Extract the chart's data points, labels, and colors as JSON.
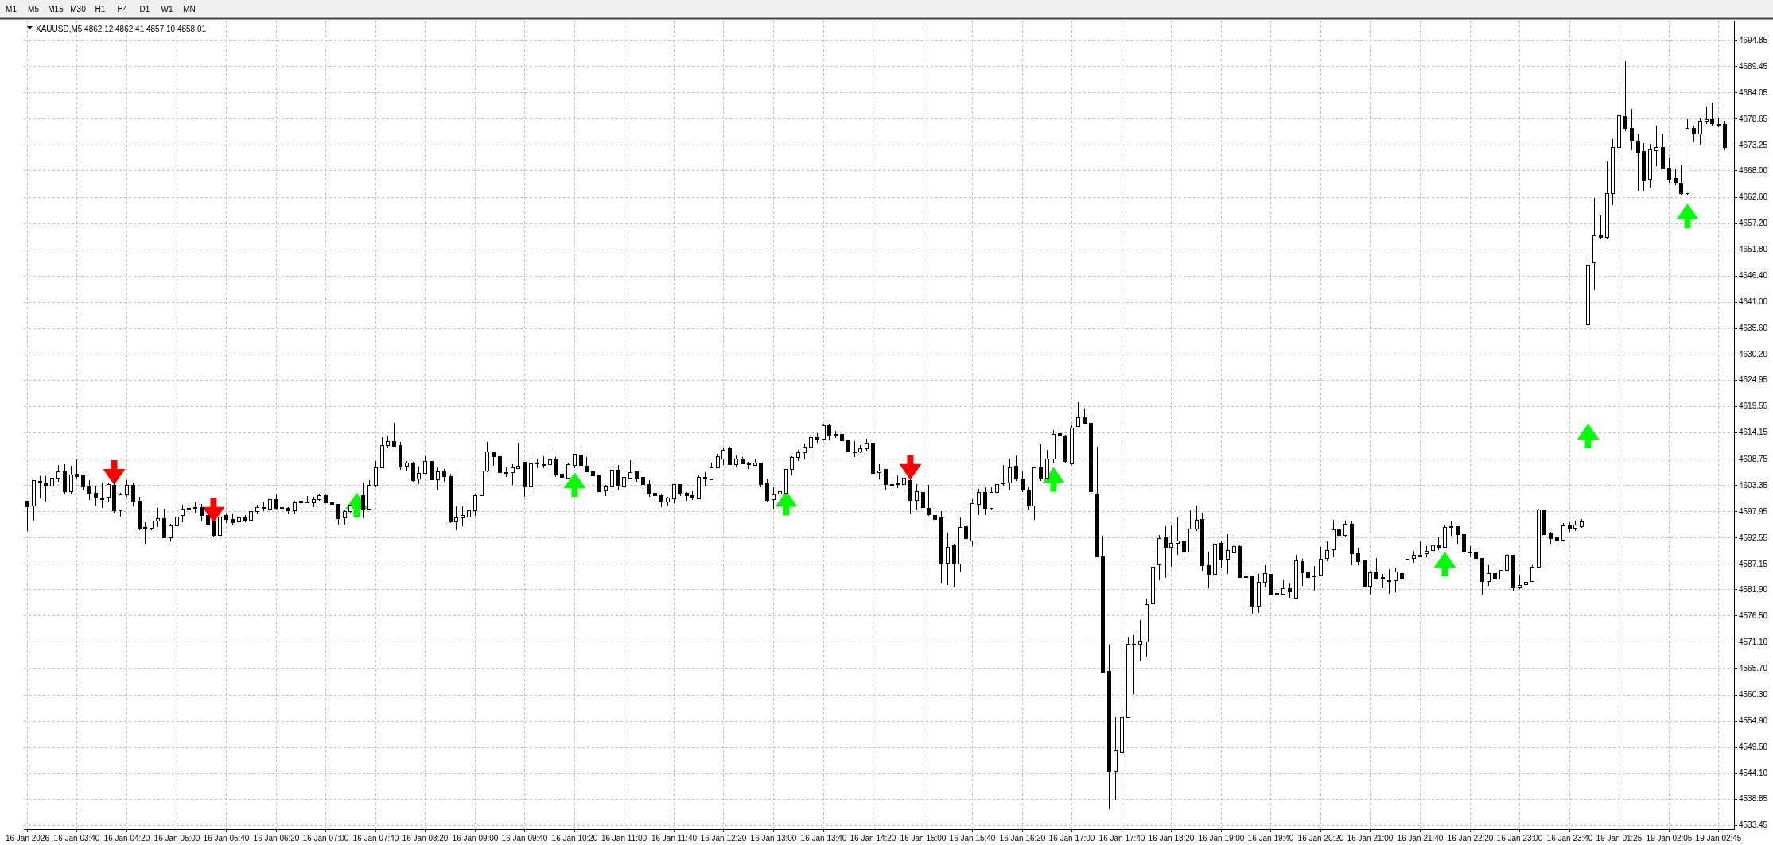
{
  "chart_data": {
    "type": "candlestick",
    "title": "XAUUSD,M5 4862.12 4862.41 4857.10 4858.01",
    "annotations": [
      "M1",
      "M5",
      "M15",
      "M30",
      "H1",
      "H4",
      "D1",
      "W1",
      "MN"
    ],
    "categories": [
      "16 Jan 2026",
      null,
      null,
      null,
      null,
      null,
      null,
      null,
      "16 Jan 03:40",
      null,
      null,
      null,
      null,
      null,
      null,
      null,
      "16 Jan 04:20",
      null,
      null,
      null,
      null,
      null,
      null,
      null,
      "16 Jan 05:00",
      null,
      null,
      null,
      null,
      null,
      null,
      null,
      "16 Jan 05:40",
      null,
      null,
      null,
      null,
      null,
      null,
      null,
      "16 Jan 06:20",
      null,
      null,
      null,
      null,
      null,
      null,
      null,
      "16 Jan 07:00",
      null,
      null,
      null,
      null,
      null,
      null,
      null,
      "16 Jan 07:40",
      null,
      null,
      null,
      null,
      null,
      null,
      null,
      "16 Jan 08:20",
      null,
      null,
      null,
      null,
      null,
      null,
      null,
      "16 Jan 09:00",
      null,
      null,
      null,
      null,
      null,
      null,
      null,
      "16 Jan 09:40",
      null,
      null,
      null,
      null,
      null,
      null,
      null,
      "16 Jan 10:20",
      null,
      null,
      null,
      null,
      null,
      null,
      null,
      "16 Jan 11:00",
      null,
      null,
      null,
      null,
      null,
      null,
      null,
      "16 Jan 11:40",
      null,
      null,
      null,
      null,
      null,
      null,
      null,
      "16 Jan 12:20",
      null,
      null,
      null,
      null,
      null,
      null,
      null,
      "16 Jan 13:00",
      null,
      null,
      null,
      null,
      null,
      null,
      null,
      "16 Jan 13:40",
      null,
      null,
      null,
      null,
      null,
      null,
      null,
      "16 Jan 14:20",
      null,
      null,
      null,
      null,
      null,
      null,
      null,
      "16 Jan 15:00",
      null,
      null,
      null,
      null,
      null,
      null,
      null,
      "16 Jan 15:40",
      null,
      null,
      null,
      null,
      null,
      null,
      null,
      "16 Jan 16:20",
      null,
      null,
      null,
      null,
      null,
      null,
      null,
      "16 Jan 17:00",
      null,
      null,
      null,
      null,
      null,
      null,
      null,
      "16 Jan 17:40",
      null,
      null,
      null,
      null,
      null,
      null,
      null,
      "16 Jan 18:20",
      null,
      null,
      null,
      null,
      null,
      null,
      null,
      "16 Jan 19:00",
      null,
      null,
      null,
      null,
      null,
      null,
      null,
      "16 Jan 19:40",
      null,
      null,
      null,
      null,
      null,
      null,
      null,
      "16 Jan 20:20",
      null,
      null,
      null,
      null,
      null,
      null,
      null,
      "16 Jan 21:00",
      null,
      null,
      null,
      null,
      null,
      null,
      null,
      "16 Jan 21:40",
      null,
      null,
      null,
      null,
      null,
      null,
      null,
      "16 Jan 22:20",
      null,
      null,
      null,
      null,
      null,
      null,
      null,
      "16 Jan 23:00",
      null,
      null,
      null,
      null,
      null,
      null,
      null,
      "16 Jan 23:40",
      null,
      null,
      null,
      null,
      null,
      null,
      null,
      "19 Jan 01:25",
      null,
      null,
      null,
      null,
      null,
      null,
      null,
      "19 Jan 02:05",
      null,
      null,
      null,
      null,
      null,
      null,
      null,
      "19 Jan 02:45",
      null
    ],
    "ohlc": [
      [
        4600.1,
        4600.1,
        4594.0,
        4599.0
      ],
      [
        4599.1,
        4604.4,
        4596.1,
        4604.4
      ],
      [
        4604.2,
        4605.1,
        4600.7,
        4603.9
      ],
      [
        4603.9,
        4605.2,
        4600.1,
        4603.2
      ],
      [
        4603.2,
        4604.8,
        4602.0,
        4604.8
      ],
      [
        4604.8,
        4607.4,
        4604.1,
        4606.1
      ],
      [
        4606.1,
        4607.6,
        4601.6,
        4602.0
      ],
      [
        4602.1,
        4607.3,
        4601.7,
        4605.5
      ],
      [
        4605.6,
        4608.6,
        4604.8,
        4605.2
      ],
      [
        4605.4,
        4605.5,
        4602.6,
        4603.1
      ],
      [
        4603.1,
        4604.4,
        4600.5,
        4601.7
      ],
      [
        4601.7,
        4603.1,
        4599.2,
        4600.7
      ],
      [
        4600.6,
        4603.8,
        4598.8,
        4600.5
      ],
      [
        4600.9,
        4603.8,
        4600.0,
        4603.5
      ],
      [
        4603.4,
        4604.1,
        4597.8,
        4598.1
      ],
      [
        4598.1,
        4601.7,
        4597.0,
        4601.4
      ],
      [
        4601.4,
        4604.4,
        4601.1,
        4603.4
      ],
      [
        4603.3,
        4603.8,
        4599.1,
        4600.1
      ],
      [
        4600.1,
        4600.9,
        4594.2,
        4594.6
      ],
      [
        4594.7,
        4595.6,
        4591.4,
        4594.6
      ],
      [
        4594.6,
        4596.0,
        4594.2,
        4596.0
      ],
      [
        4596.0,
        4598.6,
        4594.9,
        4596.5
      ],
      [
        4596.5,
        4598.4,
        4592.5,
        4592.5
      ],
      [
        4592.5,
        4595.3,
        4591.9,
        4595.0
      ],
      [
        4595.0,
        4598.2,
        4594.6,
        4596.9
      ],
      [
        4597.1,
        4599.3,
        4595.9,
        4598.4
      ],
      [
        4598.4,
        4599.3,
        4598.1,
        4598.6
      ],
      [
        4598.8,
        4599.8,
        4597.8,
        4598.7
      ],
      [
        4598.8,
        4599.4,
        4596.0,
        4597.1
      ],
      [
        4597.1,
        4597.4,
        4595.3,
        4595.3
      ],
      [
        4595.9,
        4596.0,
        4592.9,
        4593.0
      ],
      [
        4593.1,
        4597.7,
        4593.0,
        4596.9
      ],
      [
        4597.1,
        4597.5,
        4595.6,
        4596.3
      ],
      [
        4596.3,
        4597.5,
        4595.2,
        4595.7
      ],
      [
        4595.8,
        4597.0,
        4595.5,
        4596.7
      ],
      [
        4596.7,
        4597.2,
        4595.9,
        4596.1
      ],
      [
        4596.2,
        4598.7,
        4596.0,
        4597.9
      ],
      [
        4597.9,
        4599.2,
        4597.5,
        4598.8
      ],
      [
        4598.8,
        4599.7,
        4598.2,
        4598.7
      ],
      [
        4598.5,
        4600.5,
        4598.5,
        4600.5
      ],
      [
        4600.5,
        4601.4,
        4598.5,
        4598.6
      ],
      [
        4598.8,
        4599.2,
        4598.4,
        4598.7
      ],
      [
        4598.6,
        4598.8,
        4597.4,
        4598.1
      ],
      [
        4598.1,
        4600.1,
        4597.7,
        4599.8
      ],
      [
        4599.7,
        4600.9,
        4599.4,
        4600.1
      ],
      [
        4600.0,
        4601.0,
        4599.7,
        4599.9
      ],
      [
        4599.7,
        4600.9,
        4598.9,
        4600.4
      ],
      [
        4600.4,
        4601.6,
        4600.3,
        4601.3
      ],
      [
        4601.3,
        4601.4,
        4599.7,
        4599.8
      ],
      [
        4599.8,
        4600.5,
        4599.3,
        4599.4
      ],
      [
        4599.5,
        4599.5,
        4595.3,
        4596.5
      ],
      [
        4596.6,
        4598.2,
        4595.4,
        4597.9
      ],
      [
        4597.9,
        4599.2,
        4597.8,
        4599.2
      ],
      null,
      [
        4601.3,
        4603.8,
        4596.6,
        4598.4
      ],
      [
        4598.5,
        4604.4,
        4598.5,
        4603.4
      ],
      [
        4603.4,
        4608.3,
        4603.0,
        4607.0
      ],
      [
        4607.0,
        4613.1,
        4607.0,
        4611.5
      ],
      [
        4611.6,
        4613.5,
        4611.0,
        4612.4
      ],
      [
        4612.3,
        4616.1,
        4611.3,
        4611.3
      ],
      [
        4611.5,
        4612.2,
        4606.7,
        4607.1
      ],
      [
        4607.3,
        4608.3,
        4606.4,
        4608.0
      ],
      [
        4608.0,
        4608.1,
        4604.2,
        4604.4
      ],
      [
        4604.6,
        4607.1,
        4603.7,
        4605.8
      ],
      [
        4605.8,
        4609.2,
        4605.8,
        4608.3
      ],
      [
        4608.3,
        4608.3,
        4604.5,
        4604.5
      ],
      [
        4604.5,
        4607.0,
        4602.6,
        4606.1
      ],
      [
        4606.1,
        4606.7,
        4604.2,
        4605.1
      ],
      [
        4605.2,
        4605.6,
        4595.7,
        4595.9
      ],
      [
        4595.9,
        4598.9,
        4594.2,
        4596.6
      ],
      [
        4596.7,
        4598.9,
        4595.0,
        4597.1
      ],
      [
        4596.9,
        4599.3,
        4596.8,
        4598.1
      ],
      [
        4598.1,
        4601.6,
        4597.1,
        4601.3
      ],
      [
        4601.3,
        4606.3,
        4601.3,
        4606.3
      ],
      [
        4606.3,
        4612.2,
        4606.2,
        4610.2
      ],
      [
        4610.2,
        4610.2,
        4607.4,
        4609.2
      ],
      [
        4609.3,
        4609.3,
        4604.9,
        4605.9
      ],
      [
        4606.0,
        4607.0,
        4605.1,
        4605.9
      ],
      [
        4605.9,
        4607.6,
        4603.5,
        4607.0
      ],
      [
        4606.8,
        4612.1,
        4606.8,
        4607.3
      ],
      [
        4608.1,
        4608.1,
        4601.1,
        4603.1
      ],
      [
        4603.1,
        4609.6,
        4602.2,
        4607.7
      ],
      [
        4607.9,
        4608.8,
        4606.9,
        4607.8
      ],
      [
        4607.6,
        4609.2,
        4607.0,
        4607.5
      ],
      [
        4607.6,
        4610.6,
        4605.4,
        4608.6
      ],
      [
        4608.7,
        4609.0,
        4605.2,
        4605.5
      ],
      [
        4605.7,
        4608.6,
        4605.0,
        4605.0
      ],
      [
        4604.9,
        4607.7,
        4604.8,
        4607.6
      ],
      [
        4607.4,
        4609.7,
        4607.0,
        4609.7
      ],
      [
        4609.6,
        4610.6,
        4607.1,
        4607.4
      ],
      [
        4607.3,
        4609.0,
        4606.1,
        4606.2
      ],
      [
        4606.2,
        4606.6,
        4603.7,
        4605.4
      ],
      [
        4605.5,
        4605.5,
        4602.1,
        4602.1
      ],
      [
        4602.2,
        4603.4,
        4601.3,
        4603.1
      ],
      [
        4603.1,
        4607.3,
        4602.3,
        4606.5
      ],
      [
        4606.5,
        4607.4,
        4602.6,
        4603.2
      ],
      [
        4603.0,
        4605.0,
        4602.6,
        4605.0
      ],
      [
        4604.9,
        4608.4,
        4604.9,
        4606.0
      ],
      [
        4606.1,
        4606.3,
        4604.2,
        4604.9
      ],
      [
        4605.0,
        4605.0,
        4602.1,
        4603.6
      ],
      [
        4603.6,
        4604.4,
        4601.0,
        4601.6
      ],
      [
        4601.7,
        4602.1,
        4600.3,
        4601.3
      ],
      [
        4601.3,
        4601.6,
        4598.9,
        4599.9
      ],
      [
        4599.9,
        4600.9,
        4599.3,
        4600.7
      ],
      [
        4600.6,
        4603.6,
        4599.7,
        4603.6
      ],
      [
        4603.6,
        4603.6,
        4601.3,
        4601.6
      ],
      [
        4601.7,
        4601.9,
        4600.3,
        4601.3
      ],
      [
        4601.3,
        4602.1,
        4600.4,
        4600.7
      ],
      [
        4600.6,
        4605.4,
        4600.6,
        4605.0
      ],
      [
        4605.0,
        4605.9,
        4603.2,
        4604.6
      ],
      [
        4604.5,
        4608.0,
        4604.5,
        4607.0
      ],
      [
        4607.0,
        4609.7,
        4606.9,
        4609.2
      ],
      [
        4608.8,
        4611.0,
        4607.6,
        4610.6
      ],
      [
        4610.8,
        4611.2,
        4607.6,
        4607.6
      ],
      [
        4607.6,
        4609.4,
        4607.1,
        4608.7
      ],
      [
        4608.8,
        4609.0,
        4607.7,
        4607.8
      ],
      [
        4607.8,
        4608.1,
        4606.8,
        4607.7
      ],
      [
        4607.4,
        4608.8,
        4607.4,
        4608.0
      ],
      [
        4608.0,
        4608.0,
        4603.0,
        4603.6
      ],
      [
        4603.8,
        4604.6,
        4600.1,
        4600.3
      ],
      [
        4600.4,
        4602.8,
        4598.6,
        4601.4
      ],
      [
        4601.6,
        4602.2,
        4598.8,
        4602.0
      ],
      [
        4601.8,
        4606.7,
        4601.7,
        4606.7
      ],
      [
        4606.7,
        4609.3,
        4605.5,
        4609.1
      ],
      [
        4609.1,
        4610.5,
        4608.4,
        4610.0
      ],
      [
        4610.1,
        4611.9,
        4608.7,
        4611.2
      ],
      [
        4611.2,
        4613.4,
        4609.7,
        4613.1
      ],
      [
        4613.2,
        4614.0,
        4612.2,
        4612.8
      ],
      [
        4612.8,
        4615.8,
        4612.7,
        4615.6
      ],
      [
        4615.6,
        4616.0,
        4612.6,
        4613.7
      ],
      [
        4613.8,
        4614.5,
        4613.1,
        4613.7
      ],
      [
        4613.8,
        4614.5,
        4612.4,
        4612.5
      ],
      [
        4612.7,
        4612.7,
        4610.2,
        4610.2
      ],
      [
        4610.3,
        4612.3,
        4609.3,
        4610.2
      ],
      [
        4610.2,
        4611.5,
        4610.0,
        4610.9
      ],
      [
        4610.9,
        4612.9,
        4610.5,
        4612.0
      ],
      [
        4612.0,
        4612.0,
        4605.6,
        4605.8
      ],
      [
        4606.0,
        4607.6,
        4604.7,
        4606.3
      ],
      [
        4606.6,
        4606.7,
        4602.6,
        4603.5
      ],
      [
        4603.5,
        4604.1,
        4602.3,
        4603.4
      ],
      [
        4603.6,
        4605.3,
        4602.9,
        4603.7
      ],
      [
        4603.5,
        4605.3,
        4602.0,
        4604.9
      ],
      [
        4604.4,
        4604.7,
        4597.6,
        4600.3
      ],
      [
        4600.3,
        4603.5,
        4598.5,
        4602.0
      ],
      [
        4601.9,
        4605.5,
        4598.2,
        4598.8
      ],
      [
        4598.7,
        4603.3,
        4597.2,
        4597.3
      ],
      [
        4597.2,
        4598.7,
        4594.7,
        4596.4
      ],
      [
        4596.6,
        4598.0,
        4583.3,
        4587.2
      ],
      [
        4587.3,
        4593.5,
        4582.9,
        4590.6
      ],
      [
        4590.9,
        4591.2,
        4582.6,
        4587.2
      ],
      [
        4587.2,
        4596.6,
        4585.6,
        4594.7
      ],
      [
        4594.9,
        4598.9,
        4590.9,
        4592.4
      ],
      [
        4591.9,
        4600.5,
        4591.0,
        4599.6
      ],
      [
        4599.5,
        4602.5,
        4597.3,
        4601.9
      ],
      [
        4601.9,
        4602.8,
        4597.3,
        4598.6
      ],
      [
        4598.6,
        4602.8,
        4598.4,
        4601.9
      ],
      [
        4601.9,
        4603.5,
        4598.4,
        4603.5
      ],
      [
        4603.8,
        4607.5,
        4603.3,
        4603.7
      ],
      [
        4603.8,
        4608.7,
        4602.6,
        4607.0
      ],
      [
        4607.3,
        4609.4,
        4604.4,
        4604.6
      ],
      [
        4604.7,
        4606.1,
        4602.1,
        4602.3
      ],
      [
        4602.3,
        4602.9,
        4598.5,
        4599.1
      ],
      [
        4599.1,
        4607.2,
        4596.4,
        4606.9
      ],
      [
        4606.9,
        4611.7,
        4604.4,
        4604.9
      ],
      [
        4604.9,
        4610.6,
        4604.7,
        4608.8
      ],
      [
        4608.8,
        4614.6,
        4608.1,
        4613.8
      ],
      [
        4614.0,
        4614.9,
        4612.8,
        4613.5
      ],
      [
        4613.5,
        4613.6,
        4608.1,
        4608.3
      ],
      [
        4607.8,
        4615.7,
        4607.6,
        4615.2
      ],
      [
        4615.4,
        4620.3,
        4615.4,
        4617.3
      ],
      [
        4617.3,
        4619.1,
        4616.0,
        4616.1
      ],
      [
        4616.1,
        4617.8,
        4601.9,
        4602.1
      ],
      [
        4601.6,
        4611.2,
        4588.7,
        4588.7
      ],
      [
        4588.7,
        4592.9,
        4564.9,
        4565.0
      ],
      [
        4565.2,
        4570.5,
        4536.8,
        4544.6
      ],
      [
        4544.5,
        4555.6,
        4538.7,
        4548.7
      ],
      [
        4548.5,
        4557.0,
        4544.3,
        4555.6
      ],
      [
        4555.6,
        4572.2,
        4555.6,
        4570.7
      ],
      [
        4570.7,
        4572.5,
        4560.5,
        4570.6
      ],
      [
        4570.6,
        4575.6,
        4567.2,
        4571.3
      ],
      [
        4571.2,
        4580.0,
        4568.2,
        4578.9
      ],
      [
        4579.0,
        4590.4,
        4578.3,
        4586.6
      ],
      [
        4587.0,
        4593.0,
        4583.9,
        4592.4
      ],
      [
        4592.6,
        4594.8,
        4584.4,
        4590.6
      ],
      [
        4590.6,
        4595.0,
        4586.7,
        4591.4
      ],
      [
        4591.5,
        4596.6,
        4589.2,
        4592.0
      ],
      [
        4591.7,
        4595.4,
        4588.3,
        4589.6
      ],
      [
        4589.6,
        4598.1,
        4589.6,
        4594.4
      ],
      [
        4594.4,
        4599.1,
        4594.0,
        4596.2
      ],
      [
        4596.4,
        4597.6,
        4585.8,
        4586.9
      ],
      [
        4586.9,
        4589.6,
        4582.2,
        4585.0
      ],
      [
        4585.0,
        4593.6,
        4584.1,
        4591.3
      ],
      [
        4591.4,
        4591.8,
        4586.5,
        4588.2
      ],
      [
        4588.2,
        4593.3,
        4585.3,
        4589.9
      ],
      [
        4589.5,
        4593.1,
        4589.0,
        4590.8
      ],
      [
        4590.8,
        4590.9,
        4584.4,
        4584.4
      ],
      [
        4584.6,
        4586.8,
        4578.8,
        4584.5
      ],
      [
        4584.6,
        4584.6,
        4577.0,
        4578.6
      ],
      [
        4578.6,
        4585.0,
        4577.2,
        4583.5
      ],
      [
        4583.4,
        4586.8,
        4582.4,
        4585.3
      ],
      [
        4585.1,
        4585.1,
        4580.8,
        4580.8
      ],
      [
        4580.9,
        4582.4,
        4579.0,
        4581.2
      ],
      [
        4581.0,
        4583.7,
        4580.8,
        4582.1
      ],
      [
        4582.1,
        4583.1,
        4580.4,
        4581.5
      ],
      [
        4580.1,
        4589.0,
        4580.1,
        4587.8
      ],
      [
        4587.7,
        4588.1,
        4582.8,
        4585.4
      ],
      [
        4585.5,
        4586.3,
        4581.9,
        4584.4
      ],
      [
        4584.7,
        4586.7,
        4581.8,
        4584.6
      ],
      [
        4584.9,
        4590.6,
        4584.7,
        4588.2
      ],
      [
        4588.3,
        4591.7,
        4587.9,
        4589.9
      ],
      [
        4590.1,
        4596.1,
        4588.6,
        4594.2
      ],
      [
        4594.2,
        4594.8,
        4591.4,
        4593.0
      ],
      [
        4593.0,
        4596.0,
        4592.7,
        4595.4
      ],
      [
        4595.4,
        4595.8,
        4587.1,
        4589.3
      ],
      [
        4589.3,
        4590.4,
        4587.1,
        4587.6
      ],
      [
        4587.9,
        4588.0,
        4582.4,
        4582.5
      ],
      [
        4582.6,
        4585.6,
        4580.9,
        4585.4
      ],
      [
        4585.6,
        4588.4,
        4584.1,
        4584.3
      ],
      [
        4584.4,
        4585.0,
        4582.2,
        4584.0
      ],
      [
        4583.8,
        4586.0,
        4581.2,
        4583.7
      ],
      [
        4583.8,
        4586.3,
        4581.5,
        4585.5
      ],
      [
        4585.3,
        4585.4,
        4583.5,
        4584.1
      ],
      [
        4584.0,
        4588.2,
        4584.0,
        4588.2
      ],
      [
        4588.4,
        4589.8,
        4587.5,
        4588.9
      ],
      [
        4588.7,
        4591.7,
        4588.6,
        4589.0
      ],
      [
        4589.3,
        4590.8,
        4588.6,
        4589.8
      ],
      [
        4589.9,
        4592.2,
        4588.6,
        4590.9
      ],
      [
        4590.9,
        4592.5,
        4590.2,
        4590.5
      ],
      [
        4590.6,
        4595.1,
        4590.4,
        4594.7
      ],
      [
        4594.8,
        4595.9,
        4593.0,
        4594.7
      ],
      [
        4594.8,
        4594.8,
        4591.5,
        4593.3
      ],
      [
        4593.2,
        4593.2,
        4589.3,
        4589.6
      ],
      [
        4589.6,
        4590.8,
        4588.6,
        4589.5
      ],
      [
        4589.6,
        4589.8,
        4587.7,
        4588.4
      ],
      [
        4588.3,
        4588.3,
        4581.0,
        4583.6
      ],
      [
        4583.6,
        4586.8,
        4582.8,
        4585.2
      ],
      [
        4585.3,
        4587.1,
        4584.1,
        4584.1
      ],
      [
        4584.1,
        4585.8,
        4584.1,
        4585.8
      ],
      [
        4585.8,
        4589.1,
        4585.6,
        4588.9
      ],
      [
        4588.9,
        4588.9,
        4581.6,
        4582.2
      ],
      [
        4582.2,
        4584.9,
        4582.1,
        4582.8
      ],
      [
        4582.9,
        4583.9,
        4582.5,
        4583.4
      ],
      [
        4583.6,
        4586.9,
        4583.6,
        4586.5
      ],
      [
        4586.5,
        4598.5,
        4586.5,
        4598.3
      ],
      [
        4598.2,
        4598.2,
        4593.3,
        4593.3
      ],
      [
        4593.4,
        4593.7,
        4591.4,
        4592.4
      ],
      [
        4592.5,
        4592.7,
        4591.8,
        4592.1
      ],
      [
        4592.1,
        4595.5,
        4592.0,
        4595.1
      ],
      [
        4595.1,
        4595.7,
        4593.9,
        4594.5
      ],
      [
        4594.5,
        4596.0,
        4594.1,
        4595.2
      ],
      [
        4594.9,
        4596.3,
        4594.7,
        4595.8
      ],
      [
        4636.3,
        4650.2,
        4617.0,
        4648.7
      ],
      [
        4649.1,
        4662.3,
        4643.5,
        4654.6
      ],
      [
        4654.6,
        4658.7,
        4654.0,
        4654.3
      ],
      [
        4654.3,
        4669.8,
        4654.0,
        4663.4
      ],
      [
        4663.4,
        4674.5,
        4661.0,
        4672.8
      ],
      [
        4672.8,
        4683.9,
        4672.8,
        4679.3
      ],
      [
        4679.2,
        4690.5,
        4676.2,
        4676.7
      ],
      [
        4676.7,
        4680.6,
        4672.3,
        4674.2
      ],
      [
        4674.2,
        4675.6,
        4664.0,
        4671.7
      ],
      [
        4672.0,
        4673.6,
        4664.0,
        4666.0
      ],
      [
        4666.2,
        4673.4,
        4664.6,
        4672.3
      ],
      [
        4672.2,
        4677.3,
        4669.0,
        4672.8
      ],
      [
        4672.8,
        4675.6,
        4668.4,
        4668.6
      ],
      [
        4668.6,
        4670.6,
        4665.7,
        4666.2
      ],
      [
        4666.5,
        4668.4,
        4665.1,
        4665.7
      ],
      [
        4665.4,
        4669.0,
        4663.1,
        4663.4
      ],
      [
        4663.4,
        4678.6,
        4663.2,
        4676.7
      ],
      [
        4676.7,
        4677.3,
        4674.0,
        4675.6
      ],
      [
        4675.6,
        4678.9,
        4673.4,
        4678.2
      ],
      [
        4678.2,
        4681.1,
        4677.8,
        4678.6
      ],
      [
        4678.6,
        4681.9,
        4677.3,
        4677.8
      ],
      [
        4677.5,
        4678.9,
        4677.1,
        4677.4
      ],
      [
        4677.5,
        4678.2,
        4672.3,
        4672.8
      ]
    ],
    "series": [
      {
        "type": "scatter",
        "color": "#ff0000",
        "values": [
          null,
          null,
          null,
          null,
          null,
          null,
          null,
          null,
          null,
          null,
          null,
          null,
          null,
          null,
          4605.9,
          null,
          null,
          null,
          null,
          null,
          null,
          null,
          null,
          null,
          null,
          null,
          null,
          null,
          null,
          null,
          4598.1,
          null,
          null,
          null,
          null,
          null,
          null,
          null,
          null,
          null,
          null,
          null,
          null,
          null,
          null,
          null,
          null,
          null,
          null,
          null,
          null,
          null,
          null,
          null,
          null,
          null,
          null,
          null,
          null,
          null,
          null,
          null,
          null,
          null,
          null,
          null,
          null,
          null,
          null,
          null,
          null,
          null,
          null,
          null,
          null,
          null,
          null,
          null,
          null,
          null,
          null,
          null,
          null,
          null,
          null,
          null,
          null,
          null,
          null,
          null,
          null,
          null,
          null,
          null,
          null,
          null,
          null,
          null,
          null,
          null,
          null,
          null,
          null,
          null,
          null,
          null,
          null,
          null,
          null,
          null,
          null,
          null,
          null,
          null,
          null,
          null,
          null,
          null,
          null,
          null,
          null,
          null,
          null,
          null,
          null,
          null,
          null,
          null,
          null,
          null,
          null,
          null,
          null,
          null,
          null,
          null,
          null,
          null,
          null,
          null,
          null,
          null,
          4606.9,
          null,
          null,
          null,
          null,
          null,
          null,
          null,
          null,
          null,
          null,
          null,
          null,
          null,
          null,
          null,
          null,
          null,
          null,
          null,
          null,
          null,
          null,
          null,
          null,
          null,
          null,
          null,
          null,
          null,
          null,
          null,
          null,
          null,
          null,
          null,
          null,
          null,
          null,
          null,
          null,
          null,
          null,
          null,
          null,
          null,
          null,
          null,
          null,
          null,
          null,
          null,
          null,
          null,
          null,
          null,
          null,
          null,
          null,
          null,
          null,
          null,
          null,
          null,
          null,
          null,
          null,
          null,
          null,
          null,
          null,
          null,
          null,
          null,
          null,
          null,
          null,
          null,
          null,
          null,
          null,
          null,
          null,
          null,
          null,
          null,
          null,
          null,
          null,
          null,
          null,
          null,
          null,
          null,
          null,
          null,
          null,
          null,
          null,
          null,
          null,
          null,
          null,
          null,
          null,
          null,
          null,
          null,
          null,
          null,
          null,
          null,
          null,
          null,
          null,
          null,
          null,
          null,
          null,
          null,
          null,
          null,
          null,
          null,
          null,
          null,
          null,
          null,
          null,
          null,
          null,
          null
        ]
      },
      {
        "type": "scatter",
        "color": "#00ff00",
        "values": [
          null,
          null,
          null,
          null,
          null,
          null,
          null,
          null,
          null,
          null,
          null,
          null,
          null,
          null,
          null,
          null,
          null,
          null,
          null,
          null,
          null,
          null,
          null,
          null,
          null,
          null,
          null,
          null,
          null,
          null,
          null,
          null,
          null,
          null,
          null,
          null,
          null,
          null,
          null,
          null,
          null,
          null,
          null,
          null,
          null,
          null,
          null,
          null,
          null,
          null,
          null,
          null,
          null,
          4599.2,
          null,
          null,
          null,
          null,
          null,
          null,
          null,
          null,
          null,
          null,
          null,
          null,
          null,
          null,
          null,
          null,
          null,
          null,
          null,
          null,
          null,
          null,
          null,
          null,
          null,
          null,
          null,
          null,
          null,
          null,
          null,
          null,
          null,
          null,
          4603.4,
          null,
          null,
          null,
          null,
          null,
          null,
          null,
          null,
          null,
          null,
          null,
          null,
          null,
          null,
          null,
          null,
          null,
          null,
          null,
          null,
          null,
          null,
          null,
          null,
          null,
          null,
          null,
          null,
          null,
          null,
          null,
          null,
          null,
          4599.6,
          null,
          null,
          null,
          null,
          null,
          null,
          null,
          null,
          null,
          null,
          null,
          null,
          null,
          null,
          null,
          null,
          null,
          null,
          null,
          null,
          null,
          null,
          null,
          null,
          null,
          null,
          null,
          null,
          null,
          null,
          null,
          null,
          null,
          null,
          null,
          null,
          null,
          null,
          null,
          null,
          null,
          null,
          4604.5,
          null,
          null,
          null,
          null,
          null,
          null,
          null,
          null,
          null,
          null,
          null,
          null,
          null,
          null,
          null,
          null,
          null,
          null,
          null,
          null,
          null,
          null,
          null,
          null,
          null,
          null,
          null,
          null,
          null,
          null,
          null,
          null,
          null,
          null,
          null,
          null,
          null,
          null,
          null,
          null,
          null,
          null,
          null,
          null,
          null,
          null,
          null,
          null,
          null,
          null,
          null,
          null,
          null,
          null,
          null,
          null,
          null,
          null,
          null,
          null,
          null,
          null,
          4587.1,
          null,
          null,
          null,
          null,
          null,
          null,
          null,
          null,
          null,
          null,
          null,
          null,
          null,
          null,
          null,
          null,
          null,
          null,
          null,
          null,
          null,
          null,
          4613.4,
          null,
          null,
          null,
          null,
          null,
          null,
          null,
          null,
          null,
          null,
          null,
          null,
          null,
          null,
          null,
          4658.7,
          null,
          null,
          null,
          null,
          null,
          null
        ]
      }
    ],
    "ylim": [
      4532.6,
      4698.8
    ],
    "yticks": [
      4694.85,
      4689.45,
      4684.05,
      4678.65,
      4673.25,
      {
        "value": 4668,
        "label": "4668.00"
      },
      {
        "value": 4662.6,
        "label": "4662.60"
      },
      {
        "value": 4657.2,
        "label": "4657.20"
      },
      {
        "value": 4651.8,
        "label": "4651.80"
      },
      {
        "value": 4646.4,
        "label": "4646.40"
      },
      {
        "value": 4641,
        "label": "4641.00"
      },
      {
        "value": 4635.6,
        "label": "4635.60"
      },
      {
        "value": 4630.2,
        "label": "4630.20"
      },
      4624.95,
      4619.55,
      4614.15,
      4608.75,
      4603.35,
      4597.95,
      4592.55,
      4587.15,
      {
        "value": 4581.9,
        "label": "4581.90"
      },
      {
        "value": 4576.5,
        "label": "4576.50"
      },
      {
        "value": 4571.1,
        "label": "4571.10"
      },
      {
        "value": 4565.7,
        "label": "4565.70"
      },
      {
        "value": 4560.3,
        "label": "4560.30"
      },
      {
        "value": 4554.9,
        "label": "4554.90"
      },
      {
        "value": 4549.5,
        "label": "4549.50"
      },
      {
        "value": 4544.1,
        "label": "4544.10"
      },
      4538.85,
      4533.45
    ],
    "grid": true
  }
}
